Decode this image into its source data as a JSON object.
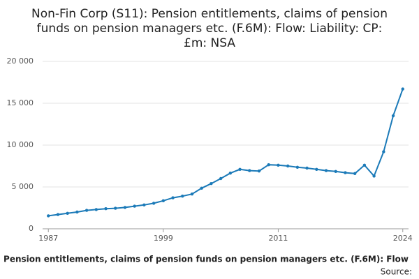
{
  "chart_data": {
    "type": "line",
    "title": [
      "Non-Fin Corp (S11): Pension entitlements, claims of pension",
      "funds on pension managers etc. (F.6M): Flow: Liability: CP:",
      "£m: NSA"
    ],
    "x": [
      1987,
      1988,
      1989,
      1990,
      1991,
      1992,
      1993,
      1994,
      1995,
      1996,
      1997,
      1998,
      1999,
      2000,
      2001,
      2002,
      2003,
      2004,
      2005,
      2006,
      2007,
      2008,
      2009,
      2010,
      2011,
      2012,
      2013,
      2014,
      2015,
      2016,
      2017,
      2018,
      2019,
      2020,
      2021,
      2022,
      2023,
      2024
    ],
    "series": [
      {
        "name": "Pension entitlements, claims of pension funds on pension managers etc. (F.6M): Flow",
        "color": "#1b7ab8",
        "values": [
          1550,
          1700,
          1850,
          2000,
          2200,
          2300,
          2400,
          2450,
          2550,
          2700,
          2850,
          3050,
          3350,
          3700,
          3900,
          4150,
          4850,
          5400,
          6000,
          6650,
          7100,
          6950,
          6900,
          7650,
          7600,
          7500,
          7350,
          7250,
          7100,
          6950,
          6850,
          6700,
          6600,
          7600,
          6300,
          9200,
          13500,
          16700
        ]
      }
    ],
    "xlim": [
      1986.4,
      2024.6
    ],
    "xticks": [
      1987,
      1999,
      2011,
      2024
    ],
    "ylim": [
      0,
      20000
    ],
    "yticks": [
      0,
      {
        "value": 5000,
        "label": "5 000"
      },
      {
        "value": 10000,
        "label": "10 000"
      },
      {
        "value": 15000,
        "label": "15 000"
      },
      {
        "value": 20000,
        "label": "20 000"
      }
    ],
    "grid": true,
    "source": "Source:"
  }
}
